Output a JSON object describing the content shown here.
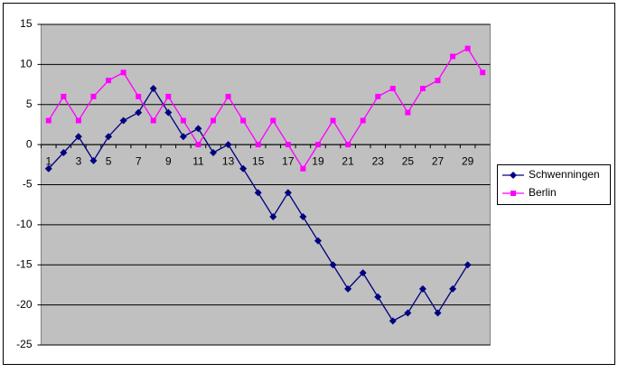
{
  "chart_data": {
    "type": "line",
    "categories": [
      1,
      null,
      3,
      null,
      5,
      null,
      7,
      null,
      9,
      null,
      11,
      null,
      13,
      null,
      15,
      null,
      17,
      null,
      19,
      null,
      21,
      null,
      23,
      null,
      25,
      null,
      27,
      null,
      29,
      null
    ],
    "series": [
      {
        "name": "Schwenningen",
        "color": "#000080",
        "marker": "diamond",
        "values": [
          -3,
          -1,
          1,
          -2,
          1,
          3,
          4,
          7,
          4,
          1,
          2,
          -1,
          0,
          -3,
          -6,
          -9,
          -6,
          -9,
          -12,
          -15,
          -18,
          -16,
          -19,
          -22,
          -21,
          -18,
          -21,
          -18,
          -15,
          null
        ]
      },
      {
        "name": "Berlin",
        "color": "#ff00ff",
        "marker": "square",
        "values": [
          3,
          6,
          3,
          6,
          8,
          9,
          6,
          3,
          6,
          3,
          0,
          3,
          6,
          3,
          0,
          3,
          0,
          -3,
          0,
          3,
          0,
          3,
          6,
          7,
          4,
          7,
          8,
          11,
          12,
          9
        ]
      }
    ],
    "ylim": [
      -25,
      15
    ],
    "yticks": [
      -25,
      -20,
      -15,
      -10,
      -5,
      0,
      5,
      10,
      15
    ],
    "grid": true,
    "legend": "right"
  }
}
